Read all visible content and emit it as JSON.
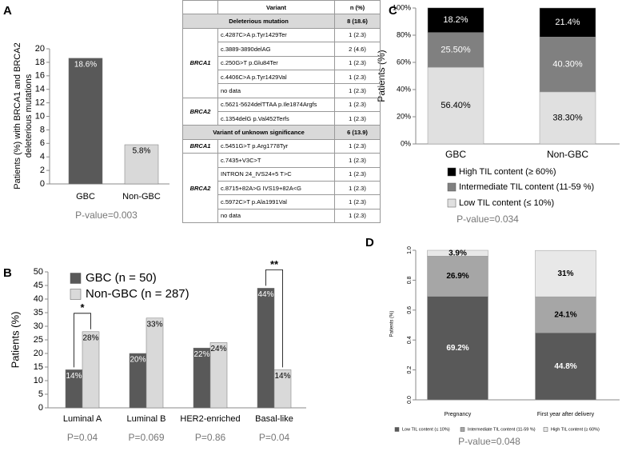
{
  "chart_data": [
    {
      "panel": "A",
      "type": "bar",
      "ylabel": [
        "Patients (%) with BRCA1 and BRCA2",
        "deleterious mutations"
      ],
      "categories": [
        "GBC",
        "Non-GBC"
      ],
      "values": [
        18.6,
        5.8
      ],
      "value_labels": [
        "18.6%",
        "5.8%"
      ],
      "colors": [
        "#595959",
        "#d9d9d9"
      ],
      "ylim": [
        0,
        20
      ],
      "yticks": [
        0,
        2,
        4,
        6,
        8,
        10,
        12,
        14,
        16,
        18,
        20
      ],
      "caption": "P-value=0.003"
    },
    {
      "panel": "B",
      "type": "bar",
      "ylabel": "Patients (%)",
      "categories": [
        "Luminal A",
        "Luminal B",
        "HER2-enriched",
        "Basal-like"
      ],
      "series": [
        {
          "name": "GBC (n = 50)",
          "color": "#595959",
          "values": [
            14,
            20,
            22,
            44
          ],
          "value_labels": [
            "14%",
            "20%",
            "22%",
            "44%"
          ]
        },
        {
          "name": "Non-GBC (n = 287)",
          "color": "#d9d9d9",
          "values": [
            28,
            33,
            24,
            14
          ],
          "value_labels": [
            "28%",
            "33%",
            "24%",
            "14%"
          ]
        }
      ],
      "ylim": [
        0,
        50
      ],
      "yticks": [
        0,
        5,
        10,
        15,
        20,
        25,
        30,
        35,
        40,
        45,
        50
      ],
      "significance": [
        "*",
        null,
        null,
        "**"
      ],
      "category_notes": [
        "P=0.04",
        "P=0.069",
        "P=0.86",
        "P=0.04"
      ]
    },
    {
      "panel": "C",
      "type": "stacked_bar",
      "ylabel": "Patients (%)",
      "categories": [
        "GBC",
        "Non-GBC"
      ],
      "series": [
        {
          "name": "Low TIL content (≤ 10%)",
          "color": "#e0e0e0",
          "values": [
            56.4,
            38.3
          ],
          "value_labels": [
            "56.40%",
            "38.30%"
          ]
        },
        {
          "name": "Intermediate TIL content (11-59 %)",
          "color": "#808080",
          "values": [
            25.5,
            40.3
          ],
          "value_labels": [
            "25.50%",
            "40.30%"
          ]
        },
        {
          "name": "High TIL content (≥ 60%)",
          "color": "#000000",
          "values": [
            18.2,
            21.4
          ],
          "value_labels": [
            "18.2%",
            "21.4%"
          ]
        }
      ],
      "ylim": [
        0,
        100
      ],
      "yticks": [
        {
          "value": 0,
          "label": "0%"
        },
        {
          "value": 20,
          "label": "20%"
        },
        {
          "value": 40,
          "label": "40%"
        },
        {
          "value": 60,
          "label": "60%"
        },
        {
          "value": 80,
          "label": "80%"
        },
        {
          "value": 100,
          "label": "100%"
        }
      ],
      "caption": "P-value=0.034"
    },
    {
      "panel": "D",
      "type": "stacked_bar",
      "ylabel": "Patients (%)",
      "categories": [
        "Pregnancy",
        "First year after delivery"
      ],
      "series": [
        {
          "name": "Low TIL content (≤ 10%)",
          "color": "#595959",
          "values": [
            0.692,
            0.448
          ],
          "value_labels": [
            "69.2%",
            "44.8%"
          ]
        },
        {
          "name": "Intermediate TIL content (11-59 %)",
          "color": "#a6a6a6",
          "values": [
            0.269,
            0.241
          ],
          "value_labels": [
            "26.9%",
            "24.1%"
          ]
        },
        {
          "name": "High TIL content (≥ 60%)",
          "color": "#e8e8e8",
          "values": [
            0.039,
            0.31
          ],
          "value_labels": [
            "3.9%",
            "31%"
          ]
        }
      ],
      "ylim": [
        0,
        1
      ],
      "yticks": [
        {
          "value": 0,
          "label": "0.0"
        },
        0.2,
        0.4,
        0.6,
        0.8,
        {
          "value": 1,
          "label": "1.0"
        }
      ],
      "caption": "P-value=0.048"
    }
  ],
  "table": {
    "header": [
      "Variant",
      "n (%)"
    ],
    "sections": [
      {
        "title": "Deleterious mutation",
        "n": "8 (18.6)",
        "groups": [
          {
            "gene": "BRCA1",
            "rows": [
              [
                "c.4287C>A p.Tyr1429Ter",
                "1 (2.3)"
              ],
              [
                "c.3889-3890delAG",
                "2 (4.6)"
              ],
              [
                "c.250G>T p.Glu84Ter",
                "1 (2.3)"
              ],
              [
                "c.4406C>A p.Tyr1429Val",
                "1 (2.3)"
              ],
              [
                "no data",
                "1 (2.3)"
              ]
            ]
          },
          {
            "gene": "BRCA2",
            "rows": [
              [
                "c.5621-5624delTTAA p.Ile1874Argfs",
                "1 (2.3)"
              ],
              [
                "c.1354delG p.Val452Terfs",
                "1 (2.3)"
              ]
            ]
          }
        ]
      },
      {
        "title": "Variant of unknown significance",
        "n": "6 (13.9)",
        "groups": [
          {
            "gene": "BRCA1",
            "rows": [
              [
                "c.5451G>T p.Arg1778Tyr",
                "1 (2.3)"
              ]
            ]
          },
          {
            "gene": "BRCA2",
            "rows": [
              [
                "c.7435+V3C>T",
                "1 (2.3)"
              ],
              [
                "INTRON 24_IVS24+5 T>C",
                "1 (2.3)"
              ],
              [
                "c.8715+82A>G IVS19+82A<G",
                "1 (2.3)"
              ],
              [
                "c.5972C>T p.Ala1991Val",
                "1 (2.3)"
              ],
              [
                "no data",
                "1 (2.3)"
              ]
            ]
          }
        ]
      }
    ]
  }
}
